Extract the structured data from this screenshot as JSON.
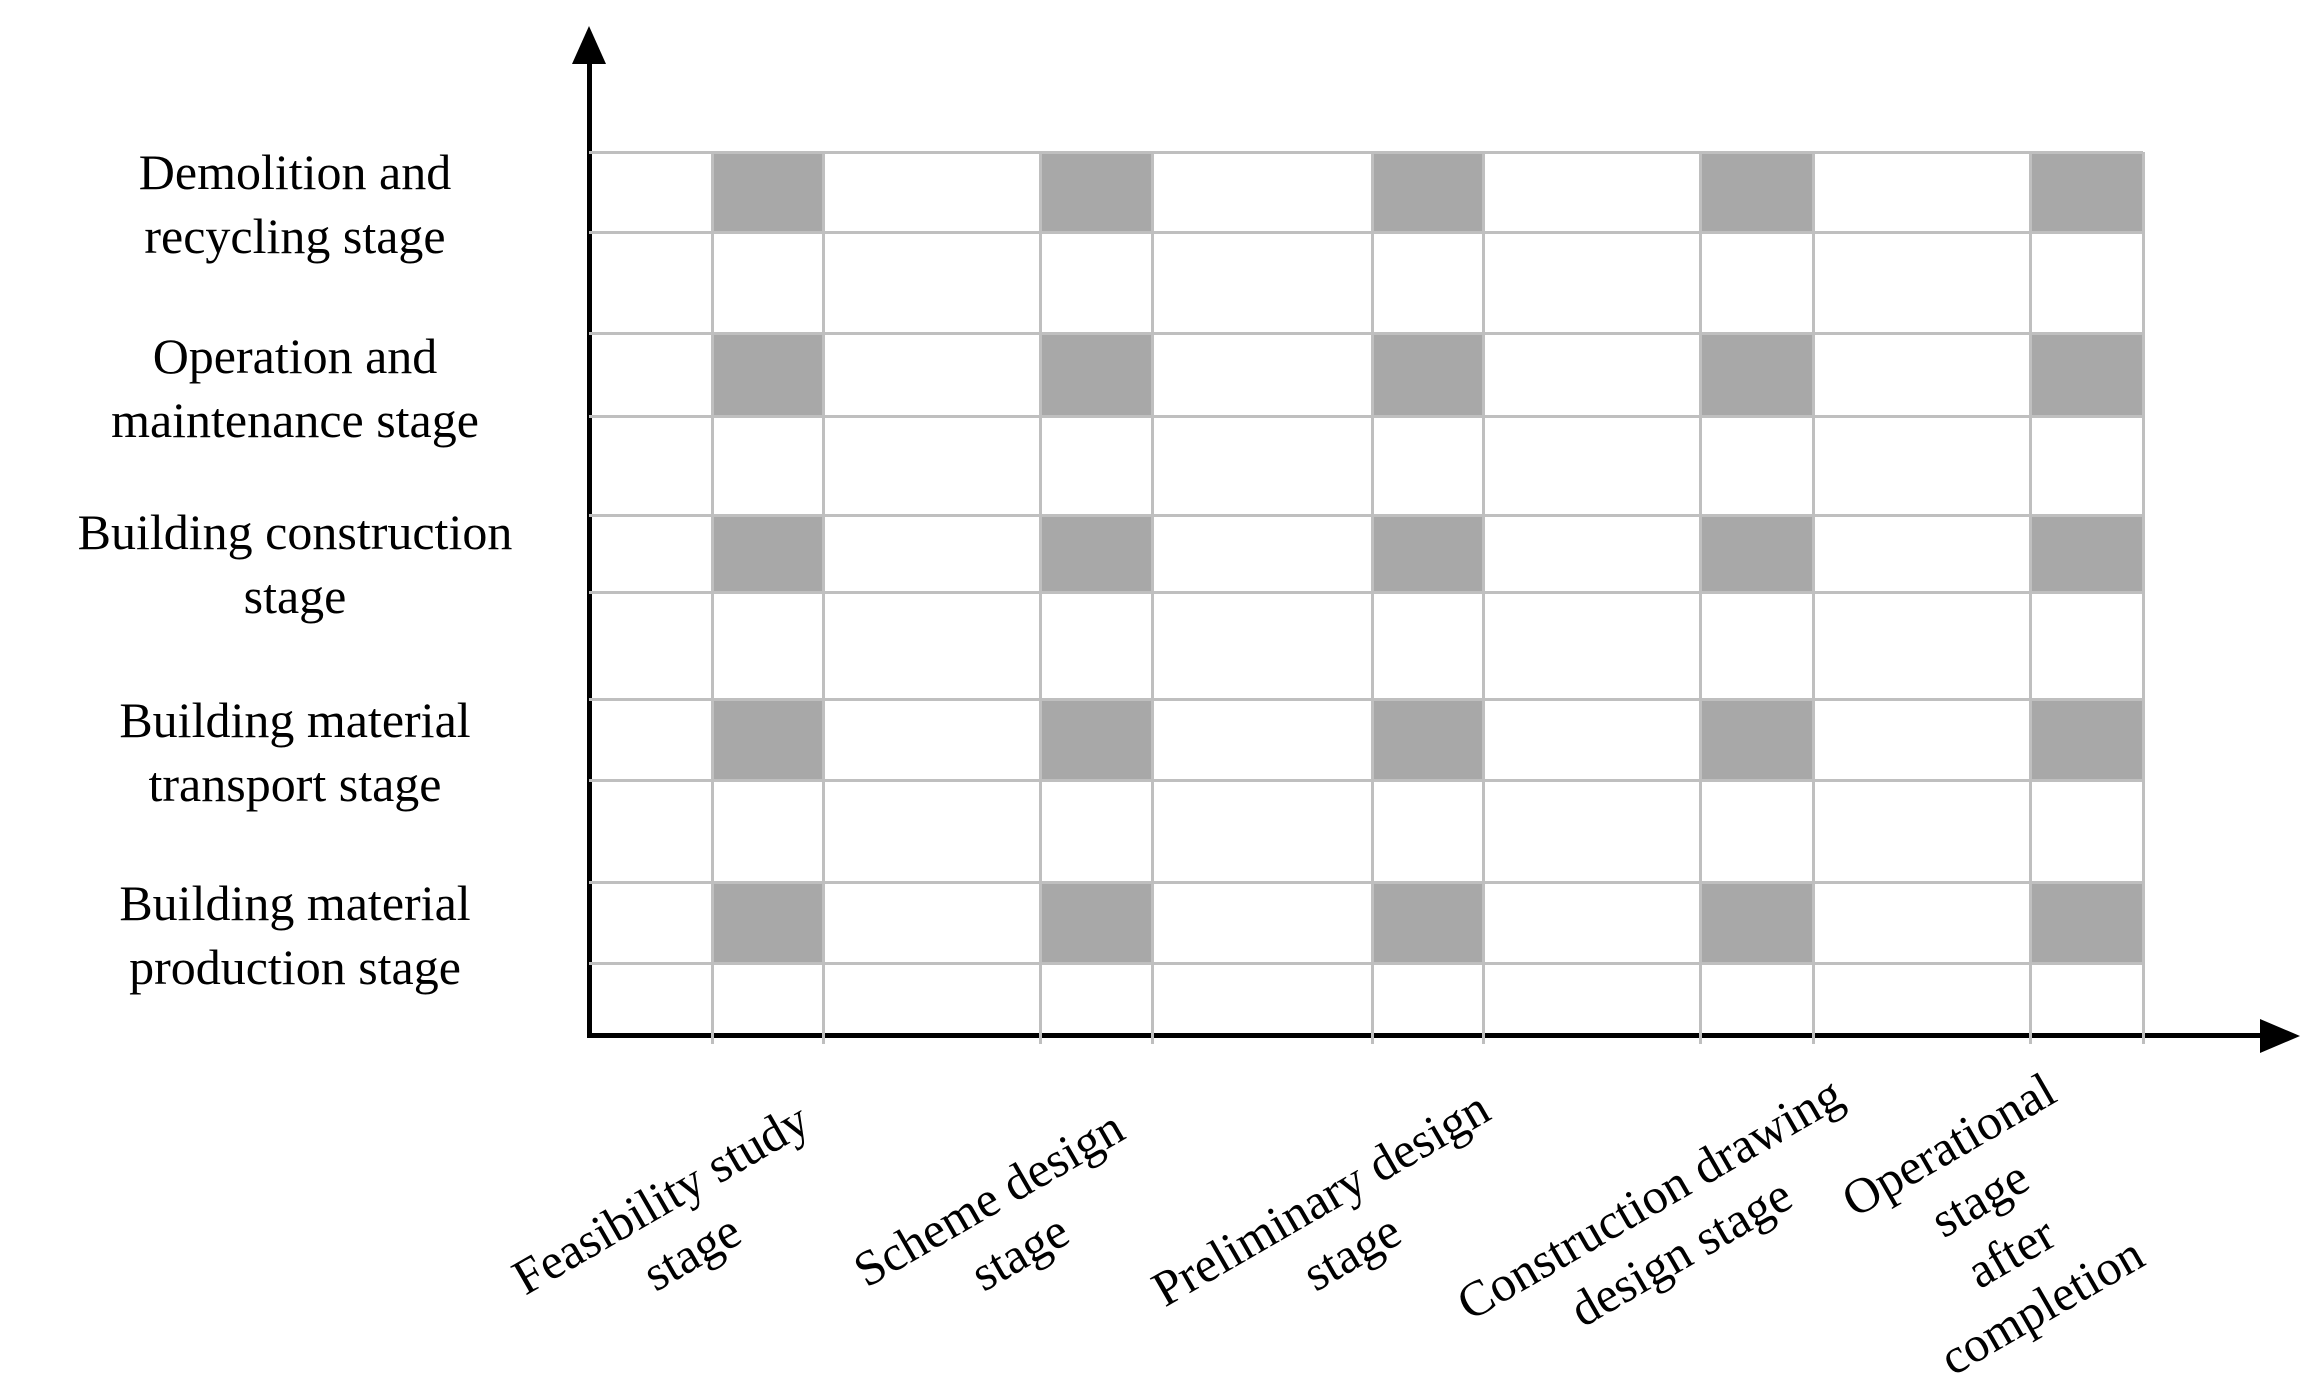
{
  "chart_data": {
    "type": "heatmap",
    "title": "",
    "x_axis": {
      "label": "",
      "categories": [
        "Feasibility study\nstage",
        "Scheme design\nstage",
        "Preliminary design\nstage",
        "Construction drawing\ndesign stage",
        "Operational stage\nafter completion"
      ],
      "tick_label_rotation_deg": -30
    },
    "y_axis": {
      "label": "",
      "categories_top_to_bottom": [
        "Demolition and\nrecycling stage",
        "Operation and\nmaintenance stage",
        "Building construction\nstage",
        "Building material\ntransport stage",
        "Building material\nproduction stage"
      ]
    },
    "matrix_rows_top_to_bottom": [
      [
        1,
        1,
        1,
        1,
        1
      ],
      [
        1,
        1,
        1,
        1,
        1
      ],
      [
        1,
        1,
        1,
        1,
        1
      ],
      [
        1,
        1,
        1,
        1,
        1
      ],
      [
        1,
        1,
        1,
        1,
        1
      ]
    ],
    "encoding": "1 = gray shaded cell at the intersection of a building life-cycle stage (row) and a project phase (column); every intersection is shaded",
    "legend": "none",
    "grid": "on",
    "colors": {
      "cell_fill": "#a8a8a8",
      "grid_line": "#bfbfbf",
      "axis": "#000000",
      "background": "#ffffff",
      "text": "#000000"
    }
  }
}
